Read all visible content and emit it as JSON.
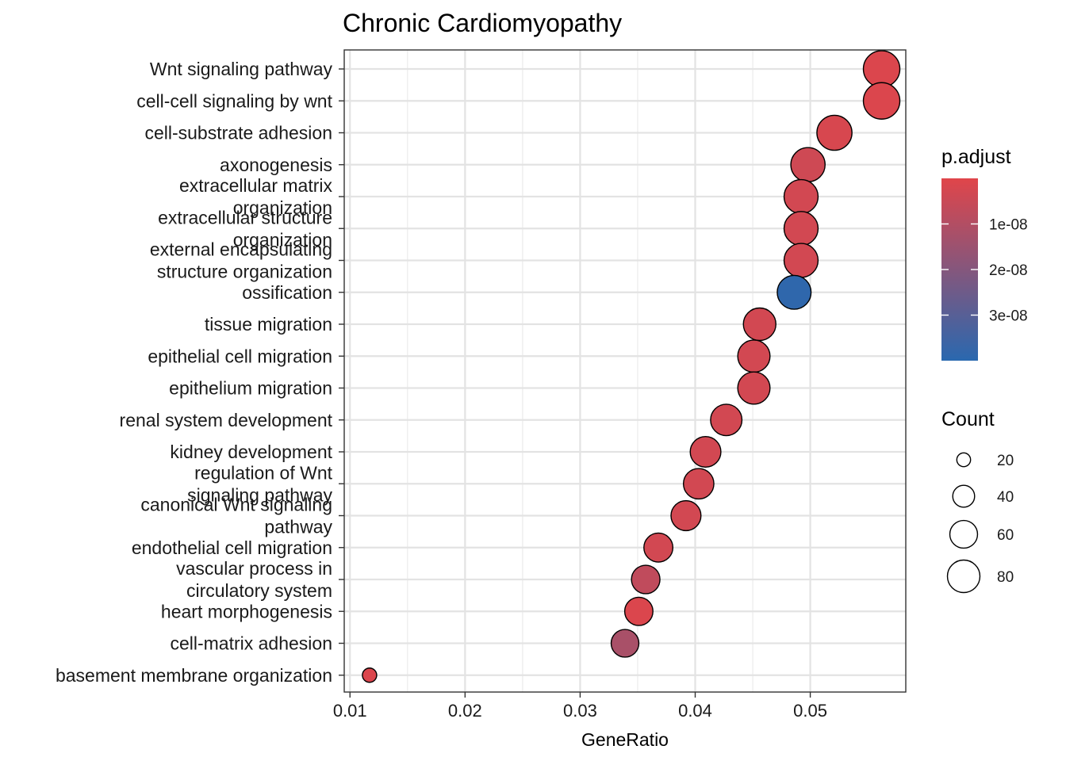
{
  "chart_data": {
    "type": "scatter",
    "title": "Chronic Cardiomyopathy",
    "xlabel": "GeneRatio",
    "ylabel": "",
    "xlim": [
      0.0095,
      0.0583
    ],
    "x_ticks": [
      {
        "value": 0.01,
        "label": "0.01"
      },
      {
        "value": 0.02,
        "label": "0.02"
      },
      {
        "value": 0.03,
        "label": "0.03"
      },
      {
        "value": 0.04,
        "label": "0.04"
      },
      {
        "value": 0.05,
        "label": "0.05"
      }
    ],
    "grid": true,
    "legend_position": "right",
    "color_legend": {
      "title": "p.adjust",
      "low_color": "#E0454A",
      "high_color": "#2A68AF",
      "range": [
        0,
        4e-08
      ],
      "ticks": [
        {
          "value": 1e-08,
          "label": "1e-08"
        },
        {
          "value": 2e-08,
          "label": "2e-08"
        },
        {
          "value": 3e-08,
          "label": "3e-08"
        }
      ]
    },
    "size_legend": {
      "title": "Count",
      "ticks": [
        {
          "value": 20,
          "label": "20"
        },
        {
          "value": 40,
          "label": "40"
        },
        {
          "value": 60,
          "label": "60"
        },
        {
          "value": 80,
          "label": "80"
        }
      ]
    },
    "points": [
      {
        "term": "Wnt signaling pathway",
        "gene_ratio": 0.0562,
        "count": 99,
        "p_adjust": 1e-09
      },
      {
        "term": "cell-cell signaling by wnt",
        "gene_ratio": 0.0562,
        "count": 99,
        "p_adjust": 1e-09
      },
      {
        "term": "cell-substrate adhesion",
        "gene_ratio": 0.0521,
        "count": 92,
        "p_adjust": 2e-09
      },
      {
        "term": "axonogenesis",
        "gene_ratio": 0.0498,
        "count": 88,
        "p_adjust": 4e-09
      },
      {
        "term": "extracellular matrix organization",
        "gene_ratio": 0.0492,
        "count": 87,
        "p_adjust": 3e-09
      },
      {
        "term": "extracellular structure organization",
        "gene_ratio": 0.0492,
        "count": 87,
        "p_adjust": 3e-09
      },
      {
        "term": "external encapsulating structure organization",
        "gene_ratio": 0.0492,
        "count": 87,
        "p_adjust": 3e-09
      },
      {
        "term": "ossification",
        "gene_ratio": 0.0486,
        "count": 86,
        "p_adjust": 3.9e-08
      },
      {
        "term": "tissue migration",
        "gene_ratio": 0.0456,
        "count": 80,
        "p_adjust": 3e-09
      },
      {
        "term": "epithelial cell migration",
        "gene_ratio": 0.0451,
        "count": 79,
        "p_adjust": 3e-09
      },
      {
        "term": "epithelium migration",
        "gene_ratio": 0.0451,
        "count": 79,
        "p_adjust": 3e-09
      },
      {
        "term": "renal system development",
        "gene_ratio": 0.0427,
        "count": 75,
        "p_adjust": 3e-09
      },
      {
        "term": "kidney development",
        "gene_ratio": 0.0409,
        "count": 72,
        "p_adjust": 3e-09
      },
      {
        "term": "regulation of Wnt signaling pathway",
        "gene_ratio": 0.0403,
        "count": 71,
        "p_adjust": 3e-09
      },
      {
        "term": "canonical Wnt signaling pathway",
        "gene_ratio": 0.0392,
        "count": 69,
        "p_adjust": 3e-09
      },
      {
        "term": "endothelial cell migration",
        "gene_ratio": 0.0368,
        "count": 65,
        "p_adjust": 3e-09
      },
      {
        "term": "vascular process in circulatory system",
        "gene_ratio": 0.0357,
        "count": 63,
        "p_adjust": 7e-09
      },
      {
        "term": "heart morphogenesis",
        "gene_ratio": 0.0351,
        "count": 62,
        "p_adjust": 1e-09
      },
      {
        "term": "cell-matrix adhesion",
        "gene_ratio": 0.0339,
        "count": 60,
        "p_adjust": 1.2e-08
      },
      {
        "term": "basement membrane organization",
        "gene_ratio": 0.0117,
        "count": 21,
        "p_adjust": 1e-09
      }
    ]
  }
}
